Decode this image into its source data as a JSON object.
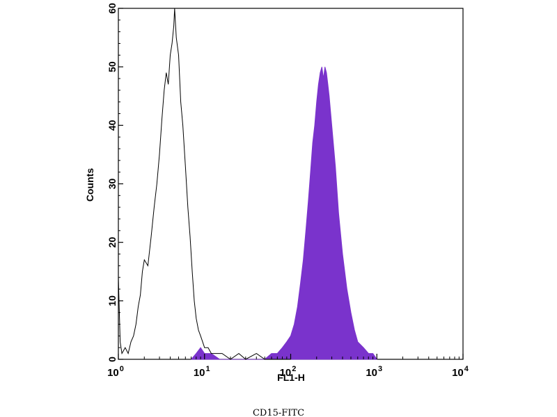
{
  "chart_data": {
    "type": "area",
    "xlabel": "FL1-H",
    "ylabel": "Counts",
    "caption": "CD15-FITC",
    "x_scale": "log",
    "xlim": [
      1,
      10000
    ],
    "ylim": [
      0,
      60
    ],
    "x_ticks": [
      {
        "value": 1,
        "base": "10",
        "exp": "0"
      },
      {
        "value": 10,
        "base": "10",
        "exp": "1"
      },
      {
        "value": 100,
        "base": "10",
        "exp": "2"
      },
      {
        "value": 1000,
        "base": "10",
        "exp": "3"
      },
      {
        "value": 10000,
        "base": "10",
        "exp": "4"
      }
    ],
    "y_ticks": [
      0,
      10,
      20,
      30,
      40,
      50,
      60
    ],
    "grid": false,
    "series": [
      {
        "style": "outline",
        "color": "#000000",
        "points": [
          [
            1.0,
            14
          ],
          [
            1.05,
            3
          ],
          [
            1.1,
            1
          ],
          [
            1.2,
            2
          ],
          [
            1.3,
            1
          ],
          [
            1.4,
            3
          ],
          [
            1.5,
            4
          ],
          [
            1.6,
            6
          ],
          [
            1.7,
            9
          ],
          [
            1.8,
            11
          ],
          [
            1.9,
            15
          ],
          [
            2.0,
            17
          ],
          [
            2.2,
            16
          ],
          [
            2.4,
            21
          ],
          [
            2.6,
            26
          ],
          [
            2.8,
            30
          ],
          [
            3.0,
            35
          ],
          [
            3.2,
            41
          ],
          [
            3.4,
            46
          ],
          [
            3.6,
            49
          ],
          [
            3.8,
            47
          ],
          [
            4.0,
            52
          ],
          [
            4.2,
            54
          ],
          [
            4.4,
            57
          ],
          [
            4.5,
            60
          ],
          [
            4.7,
            55
          ],
          [
            5.0,
            52
          ],
          [
            5.3,
            44
          ],
          [
            5.6,
            40
          ],
          [
            6.0,
            33
          ],
          [
            6.4,
            26
          ],
          [
            6.8,
            21
          ],
          [
            7.2,
            15
          ],
          [
            7.6,
            10
          ],
          [
            8.0,
            7
          ],
          [
            8.5,
            5
          ],
          [
            9.0,
            4
          ],
          [
            9.5,
            3
          ],
          [
            10,
            2
          ],
          [
            11,
            2
          ],
          [
            12,
            1
          ],
          [
            14,
            1
          ],
          [
            16,
            1
          ],
          [
            20,
            0
          ],
          [
            25,
            1
          ],
          [
            30,
            0
          ],
          [
            40,
            1
          ],
          [
            50,
            0
          ],
          [
            70,
            0
          ],
          [
            100,
            0
          ]
        ]
      },
      {
        "style": "filled",
        "color": "#7a33cc",
        "points": [
          [
            7,
            0
          ],
          [
            8,
            1
          ],
          [
            9,
            2
          ],
          [
            10,
            1
          ],
          [
            12,
            1
          ],
          [
            15,
            0
          ],
          [
            20,
            0
          ],
          [
            30,
            0
          ],
          [
            50,
            0
          ],
          [
            60,
            1
          ],
          [
            70,
            1
          ],
          [
            80,
            2
          ],
          [
            90,
            3
          ],
          [
            100,
            4
          ],
          [
            110,
            6
          ],
          [
            120,
            9
          ],
          [
            130,
            13
          ],
          [
            140,
            17
          ],
          [
            150,
            22
          ],
          [
            160,
            27
          ],
          [
            170,
            32
          ],
          [
            180,
            37
          ],
          [
            190,
            40
          ],
          [
            200,
            44
          ],
          [
            210,
            47
          ],
          [
            220,
            49
          ],
          [
            230,
            50
          ],
          [
            240,
            48
          ],
          [
            250,
            50
          ],
          [
            260,
            49
          ],
          [
            270,
            47
          ],
          [
            280,
            45
          ],
          [
            300,
            40
          ],
          [
            330,
            33
          ],
          [
            360,
            25
          ],
          [
            400,
            18
          ],
          [
            450,
            12
          ],
          [
            500,
            8
          ],
          [
            550,
            5
          ],
          [
            600,
            3
          ],
          [
            700,
            2
          ],
          [
            800,
            1
          ],
          [
            900,
            1
          ],
          [
            1000,
            0
          ]
        ]
      }
    ]
  }
}
